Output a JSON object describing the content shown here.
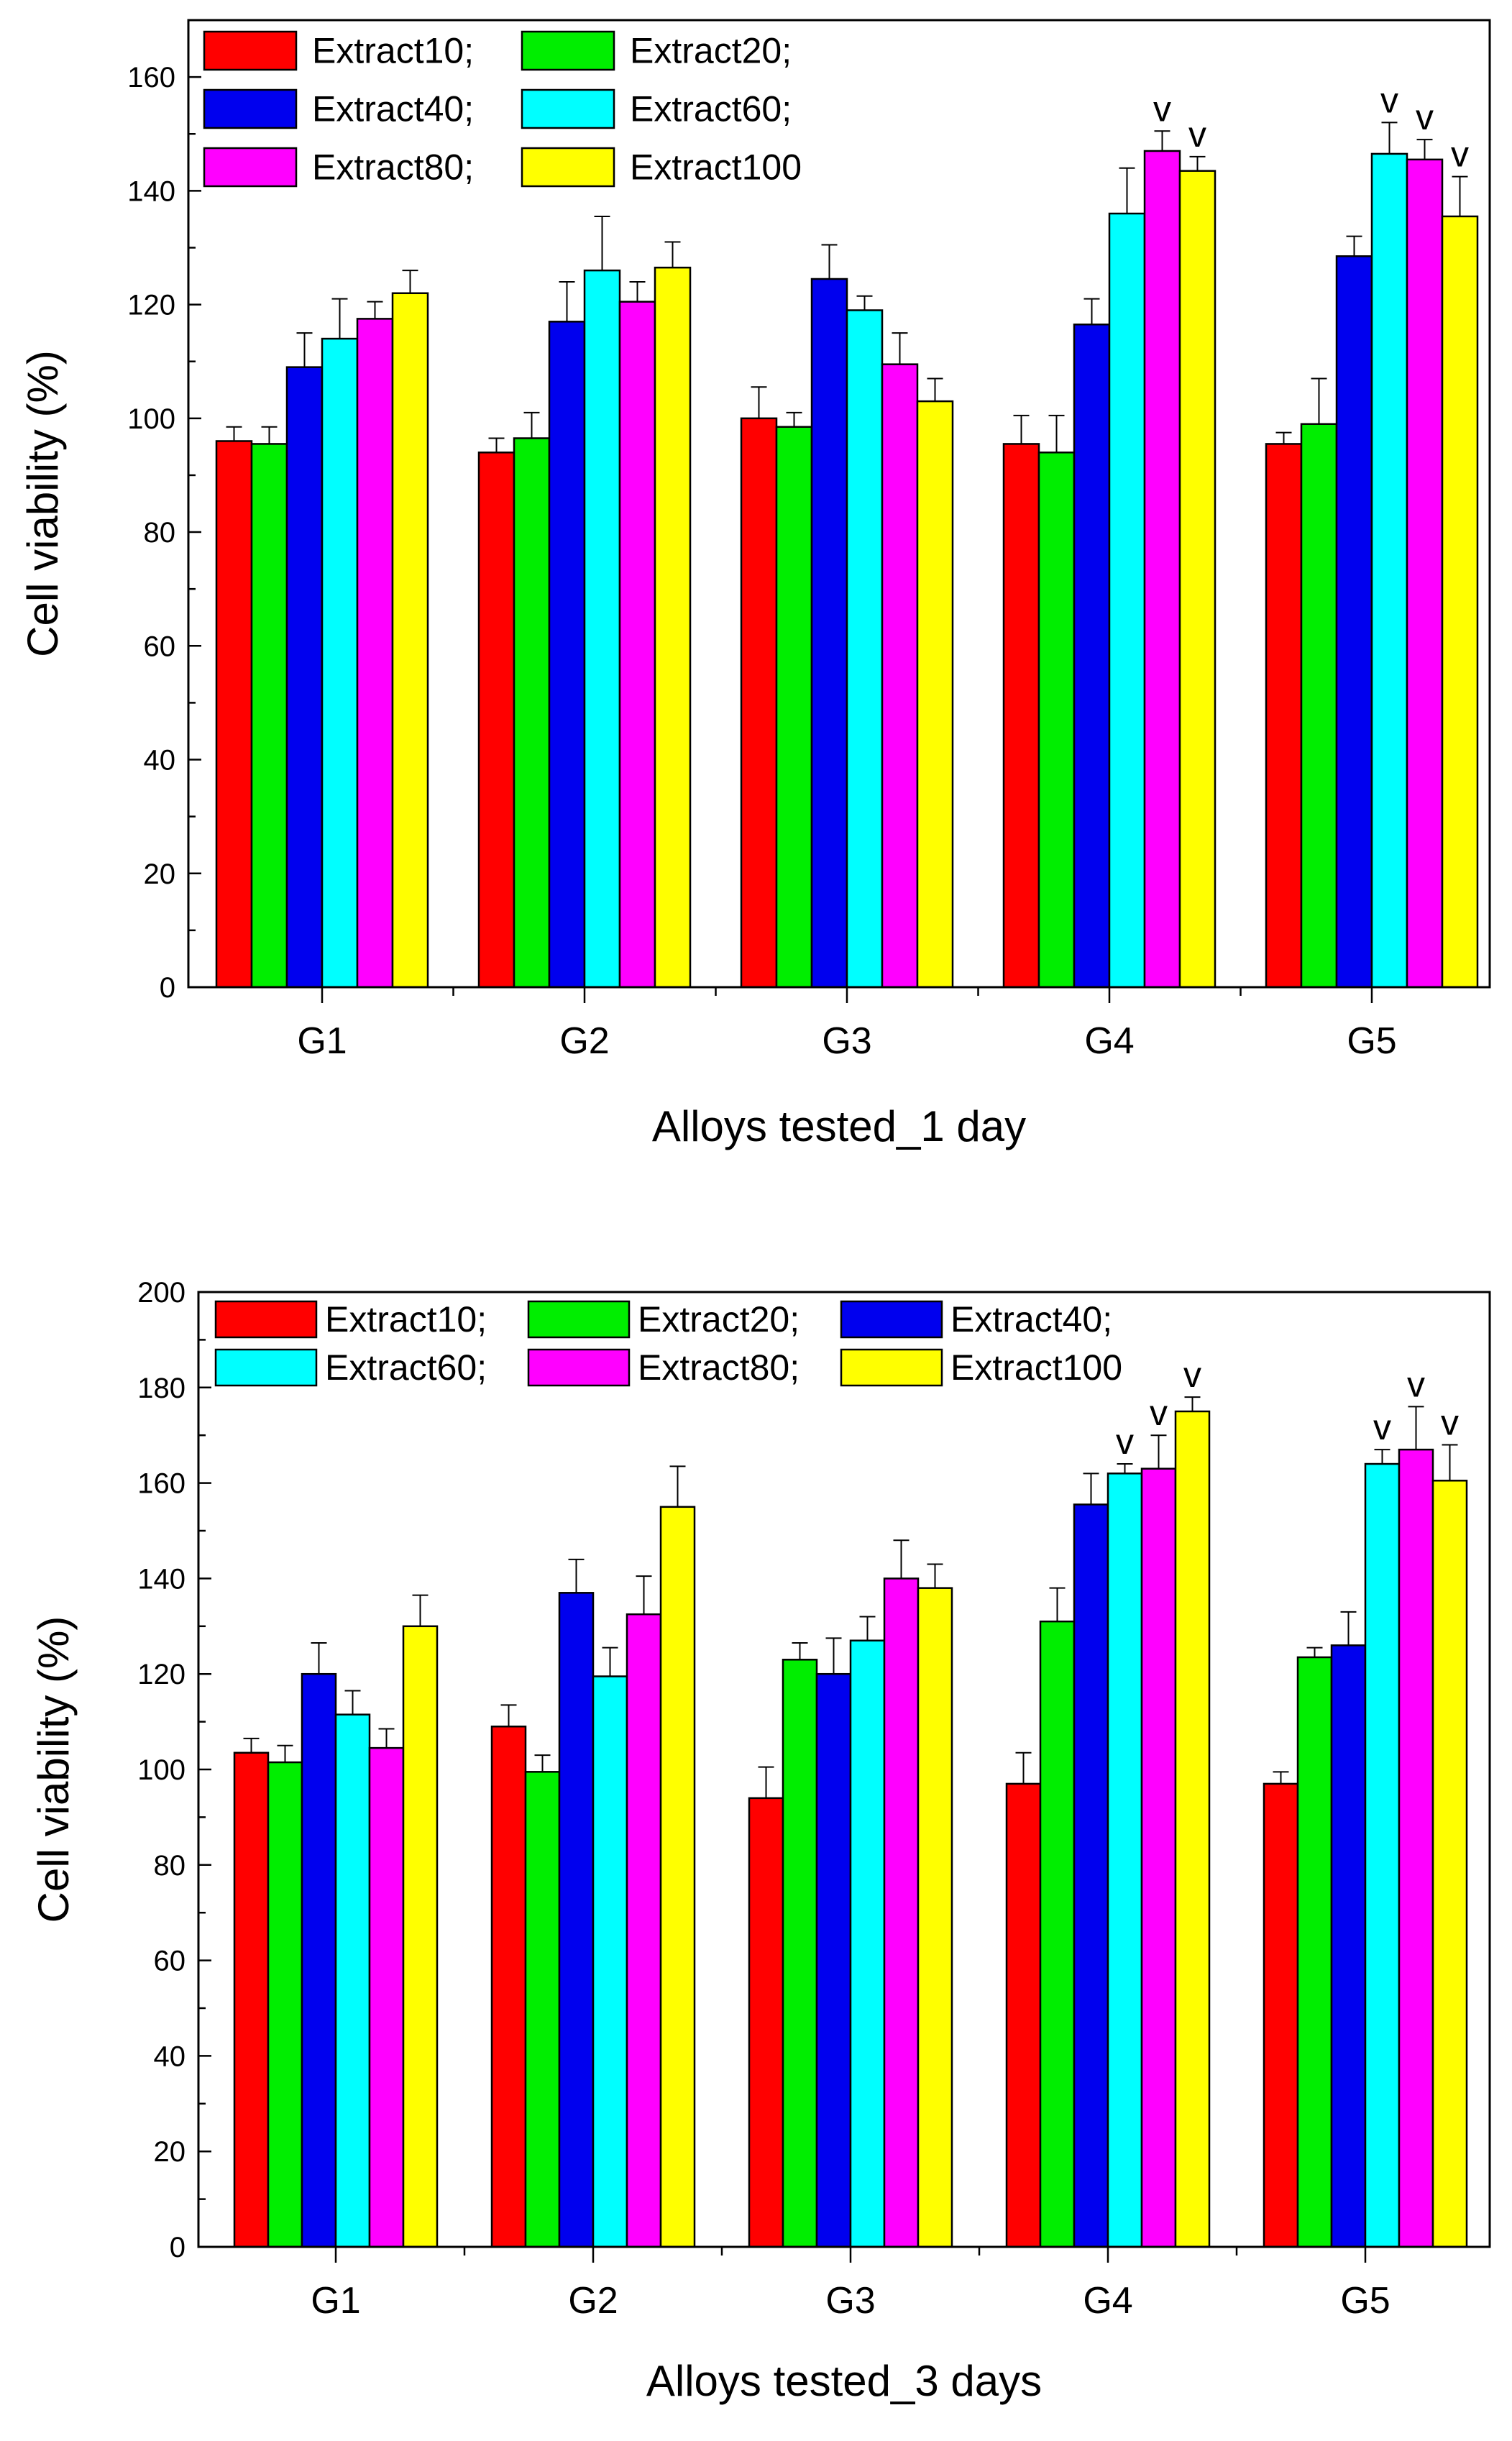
{
  "chart_data": [
    {
      "type": "bar",
      "xlabel": "Alloys tested_1 day",
      "ylabel": "Cell viability (%)",
      "categories": [
        "G1",
        "G2",
        "G3",
        "G4",
        "G5"
      ],
      "ylim": [
        0,
        170
      ],
      "yticks": [
        0,
        20,
        40,
        60,
        80,
        100,
        120,
        140,
        160
      ],
      "grid": false,
      "legend_position": "top-left",
      "legend_columns": 2,
      "legend_labels": [
        "Extract10;",
        "Extract20;",
        "Extract40;",
        "Extract60;",
        "Extract80;",
        "Extract100"
      ],
      "series": [
        {
          "name": "Extract10",
          "color": "#ff0000",
          "values": [
            96,
            94,
            100,
            95.5,
            95.5
          ],
          "errors": [
            2.5,
            2.5,
            5.5,
            5,
            2
          ]
        },
        {
          "name": "Extract20",
          "color": "#00ee00",
          "values": [
            95.5,
            96.5,
            98.5,
            94,
            99
          ],
          "errors": [
            3,
            4.5,
            2.5,
            6.5,
            8
          ]
        },
        {
          "name": "Extract40",
          "color": "#0000ee",
          "values": [
            109,
            117,
            124.5,
            116.5,
            128.5
          ],
          "errors": [
            6,
            7,
            6,
            4.5,
            3.5
          ]
        },
        {
          "name": "Extract60",
          "color": "#00ffff",
          "values": [
            114,
            126,
            119,
            136,
            146.5
          ],
          "errors": [
            7,
            9.5,
            2.5,
            8,
            5.5
          ]
        },
        {
          "name": "Extract80",
          "color": "#ff00ff",
          "values": [
            117.5,
            120.5,
            109.5,
            147,
            145.5
          ],
          "errors": [
            3,
            3.5,
            5.5,
            3.5,
            3.5
          ]
        },
        {
          "name": "Extract100",
          "color": "#ffff00",
          "values": [
            122,
            126.5,
            103,
            143.5,
            135.5
          ],
          "errors": [
            4,
            4.5,
            4,
            2.5,
            7
          ]
        }
      ],
      "annotations": [
        {
          "text": "v",
          "category": "G4",
          "series": "Extract80"
        },
        {
          "text": "v",
          "category": "G4",
          "series": "Extract100"
        },
        {
          "text": "v",
          "category": "G5",
          "series": "Extract60"
        },
        {
          "text": "v",
          "category": "G5",
          "series": "Extract80"
        },
        {
          "text": "v",
          "category": "G5",
          "series": "Extract100"
        }
      ]
    },
    {
      "type": "bar",
      "xlabel": "Alloys tested_3 days",
      "ylabel": "Cell viability (%)",
      "categories": [
        "G1",
        "G2",
        "G3",
        "G4",
        "G5"
      ],
      "ylim": [
        0,
        200
      ],
      "yticks": [
        0,
        20,
        40,
        60,
        80,
        100,
        120,
        140,
        160,
        180,
        200
      ],
      "grid": false,
      "legend_position": "top-left",
      "legend_columns": 3,
      "legend_labels": [
        "Extract10;",
        "Extract20;",
        "Extract40;",
        "Extract60;",
        "Extract80;",
        "Extract100"
      ],
      "series": [
        {
          "name": "Extract10",
          "color": "#ff0000",
          "values": [
            103.5,
            109,
            94,
            97,
            97
          ],
          "errors": [
            3,
            4.5,
            6.5,
            6.5,
            2.5
          ]
        },
        {
          "name": "Extract20",
          "color": "#00ee00",
          "values": [
            101.5,
            99.5,
            123,
            131,
            123.5
          ],
          "errors": [
            3.5,
            3.5,
            3.5,
            7,
            2
          ]
        },
        {
          "name": "Extract40",
          "color": "#0000ee",
          "values": [
            120,
            137,
            120,
            155.5,
            126
          ],
          "errors": [
            6.5,
            7,
            7.5,
            6.5,
            7
          ]
        },
        {
          "name": "Extract60",
          "color": "#00ffff",
          "values": [
            111.5,
            119.5,
            127,
            162,
            164
          ],
          "errors": [
            5,
            6,
            5,
            2,
            3
          ]
        },
        {
          "name": "Extract80",
          "color": "#ff00ff",
          "values": [
            104.5,
            132.5,
            140,
            163,
            167
          ],
          "errors": [
            4,
            8,
            8,
            7,
            9
          ]
        },
        {
          "name": "Extract100",
          "color": "#ffff00",
          "values": [
            130,
            155,
            138,
            175,
            160.5
          ],
          "errors": [
            6.5,
            8.5,
            5,
            3,
            7.5
          ]
        }
      ],
      "annotations": [
        {
          "text": "v",
          "category": "G4",
          "series": "Extract60"
        },
        {
          "text": "v",
          "category": "G4",
          "series": "Extract80"
        },
        {
          "text": "v",
          "category": "G4",
          "series": "Extract100"
        },
        {
          "text": "v",
          "category": "G5",
          "series": "Extract60"
        },
        {
          "text": "v",
          "category": "G5",
          "series": "Extract80"
        },
        {
          "text": "v",
          "category": "G5",
          "series": "Extract100"
        }
      ]
    }
  ]
}
